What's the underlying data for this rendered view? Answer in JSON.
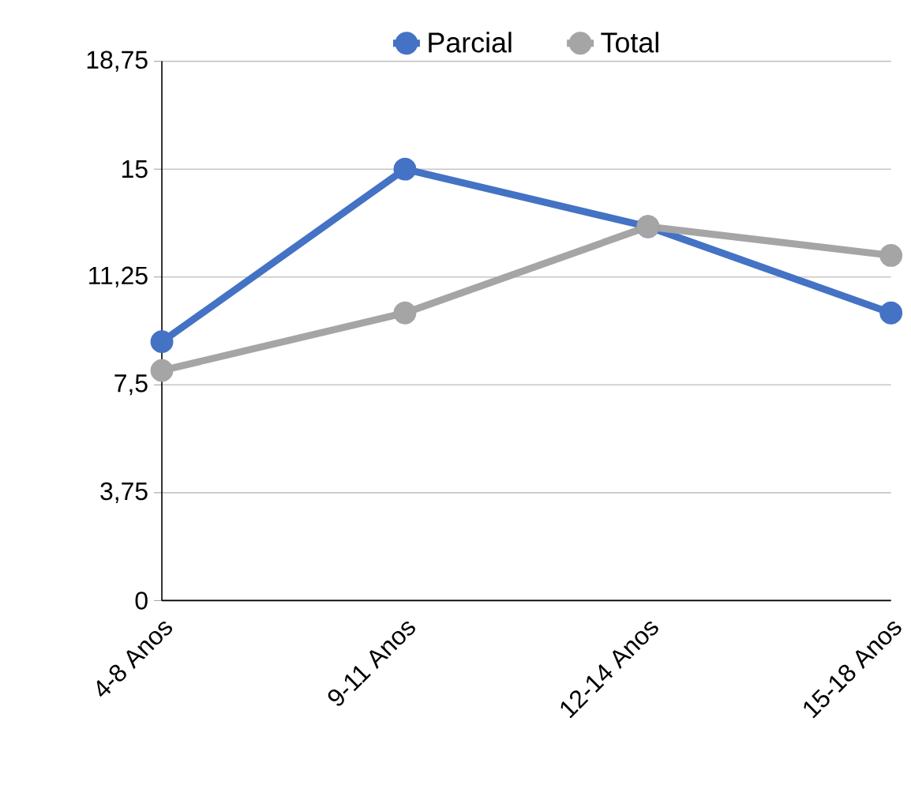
{
  "chart_data": {
    "type": "line",
    "categories": [
      "4-8 Anos",
      "9-11 Anos",
      "12-14 Anos",
      "15-18 Anos"
    ],
    "series": [
      {
        "name": "Parcial",
        "color": "#4472c4",
        "values": [
          9,
          15,
          13,
          10
        ]
      },
      {
        "name": "Total",
        "color": "#a5a5a5",
        "values": [
          8,
          10,
          13,
          12
        ]
      }
    ],
    "ylim": [
      0,
      18.75
    ],
    "yticks": [
      0,
      {
        "value": 3.75,
        "label": "3,75"
      },
      {
        "value": 7.5,
        "label": "7,5"
      },
      {
        "value": 11.25,
        "label": "11,25"
      },
      15,
      {
        "value": 18.75,
        "label": "18,75"
      }
    ],
    "grid": "y",
    "legend": "top",
    "marker": "circle",
    "line_style": "solid"
  }
}
